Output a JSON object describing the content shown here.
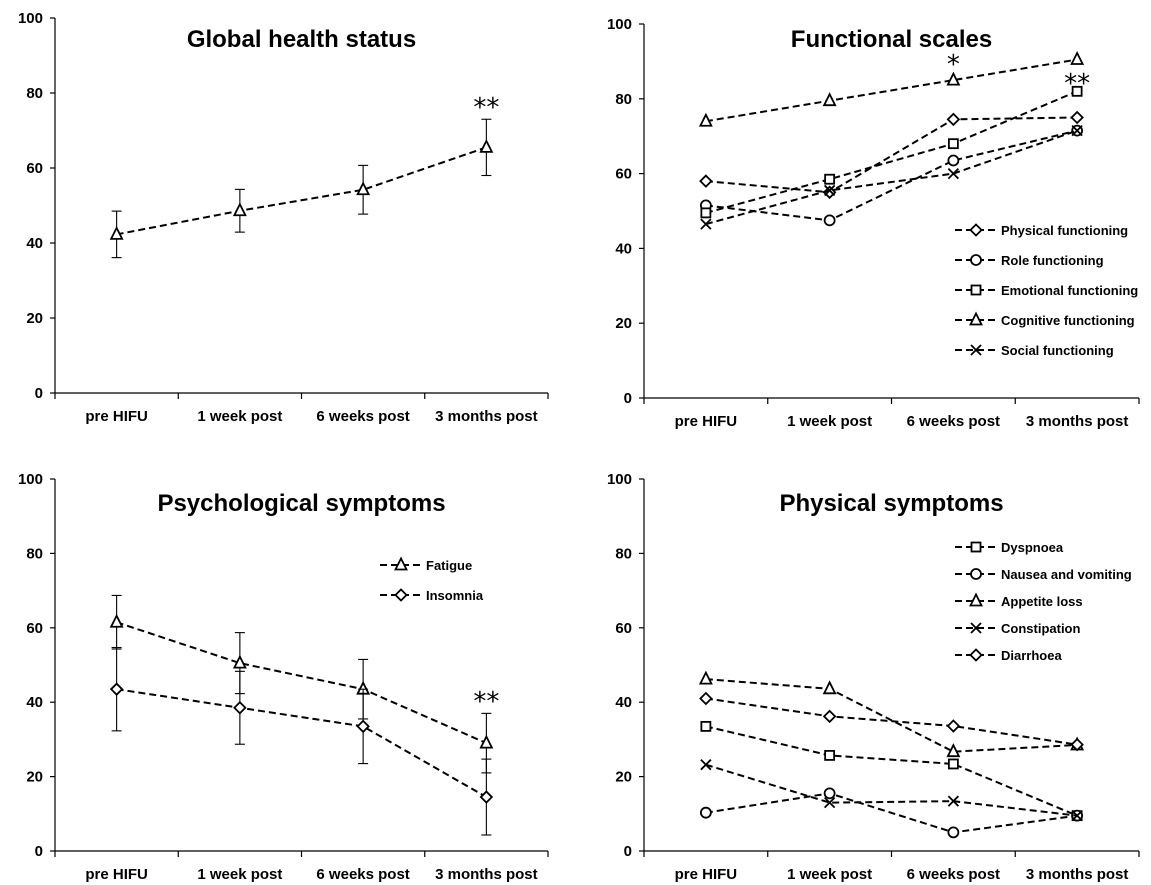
{
  "chart_data": [
    {
      "type": "line",
      "title": "Global health status",
      "categories": [
        "pre HIFU",
        "1 week post",
        "6 weeks post",
        "3 months post"
      ],
      "ylim": [
        0,
        100
      ],
      "yticks": [
        0,
        20,
        40,
        60,
        80,
        100
      ],
      "legend": "none",
      "series": [
        {
          "marker": "triangle",
          "values": [
            42.3,
            48.6,
            54.2,
            65.5
          ],
          "error": [
            6.2,
            5.7,
            6.5,
            7.5
          ]
        }
      ],
      "annotations": [
        {
          "text": "**",
          "category_index": 3,
          "y": 76
        }
      ]
    },
    {
      "type": "line",
      "title": "Functional scales",
      "categories": [
        "pre HIFU",
        "1 week post",
        "6 weeks post",
        "3 months post"
      ],
      "ylim": [
        0,
        100
      ],
      "yticks": [
        0,
        20,
        40,
        60,
        80,
        100
      ],
      "legend": "right",
      "series": [
        {
          "name": "Physical functioning",
          "marker": "diamond",
          "values": [
            58,
            55,
            74.5,
            75
          ]
        },
        {
          "name": "Role functioning",
          "marker": "circle",
          "values": [
            51.5,
            47.5,
            63.5,
            71.5
          ]
        },
        {
          "name": "Emotional functioning",
          "marker": "square",
          "values": [
            49.5,
            58.5,
            68,
            82
          ]
        },
        {
          "name": "Cognitive functioning",
          "marker": "triangle",
          "values": [
            74,
            79.5,
            85,
            90.5
          ]
        },
        {
          "name": "Social functioning",
          "marker": "x",
          "values": [
            46.5,
            55.5,
            60,
            71.5
          ]
        }
      ],
      "annotations": [
        {
          "text": "*",
          "category_index": 2,
          "y": 89
        },
        {
          "text": "**",
          "category_index": 3,
          "y": 84
        }
      ]
    },
    {
      "type": "line",
      "title": "Psychological symptoms",
      "categories": [
        "pre HIFU",
        "1 week post",
        "6 weeks post",
        "3 months post"
      ],
      "ylim": [
        0,
        100
      ],
      "yticks": [
        0,
        20,
        40,
        60,
        80,
        100
      ],
      "legend": "top-right",
      "series": [
        {
          "name": "Fatigue",
          "marker": "triangle",
          "values": [
            61.5,
            50.5,
            43.5,
            29
          ],
          "error": [
            7.2,
            8.2,
            8,
            8
          ]
        },
        {
          "name": "Insomnia",
          "marker": "diamond",
          "values": [
            43.5,
            38.5,
            33.5,
            14.5
          ],
          "error": [
            11.2,
            9.8,
            10,
            10.2
          ]
        }
      ],
      "annotations": [
        {
          "text": "**",
          "category_index": 3,
          "y": 40
        }
      ]
    },
    {
      "type": "line",
      "title": "Physical symptoms",
      "categories": [
        "pre HIFU",
        "1 week post",
        "6 weeks post",
        "3 months post"
      ],
      "ylim": [
        0,
        100
      ],
      "yticks": [
        0,
        20,
        40,
        60,
        80,
        100
      ],
      "legend": "top-right",
      "series": [
        {
          "name": "Dyspnoea",
          "marker": "square",
          "values": [
            33.5,
            25.7,
            23.4,
            9.5
          ]
        },
        {
          "name": "Nausea and vomiting",
          "marker": "circle",
          "values": [
            10.3,
            15.5,
            5,
            9.5
          ]
        },
        {
          "name": "Appetite loss",
          "marker": "triangle",
          "values": [
            46.2,
            43.6,
            26.7,
            28.5
          ]
        },
        {
          "name": "Constipation",
          "marker": "x",
          "values": [
            23.2,
            13,
            13.4,
            9.5
          ]
        },
        {
          "name": "Diarrhoea",
          "marker": "diamond",
          "values": [
            41,
            36.2,
            33.6,
            28.6
          ]
        }
      ],
      "annotations": []
    }
  ]
}
